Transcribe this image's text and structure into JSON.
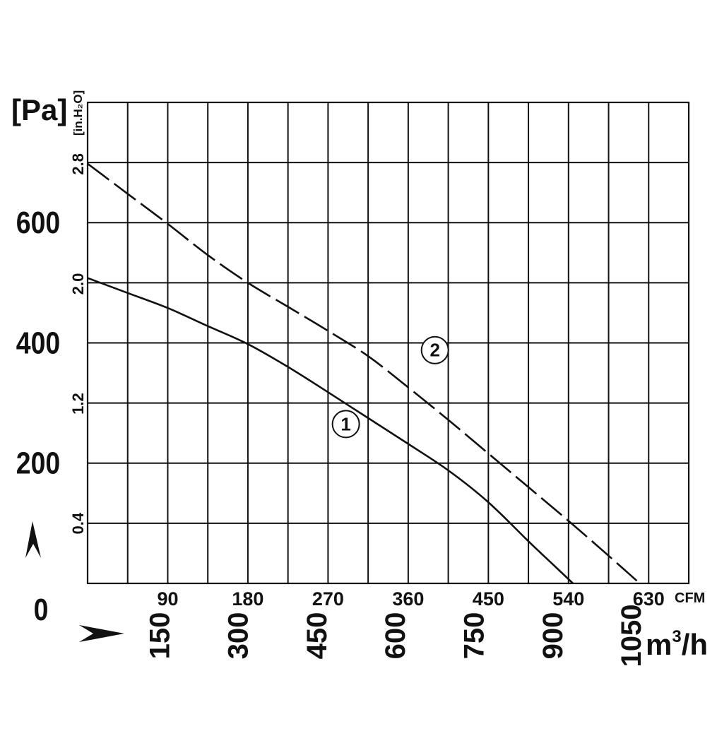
{
  "chart_data": {
    "type": "line",
    "y_unit_primary": "[Pa]",
    "y_unit_secondary": "[in.H₂O]",
    "x_unit_primary": "CFM",
    "x_unit_secondary_base": "m",
    "x_unit_secondary_sup": "3",
    "x_unit_secondary_tail": "/h",
    "pa_ticks": [
      "0",
      "200",
      "400",
      "600"
    ],
    "inh2o_ticks": [
      "0.4",
      "1.2",
      "2.0",
      "2.8"
    ],
    "cfm_ticks": [
      "90",
      "180",
      "270",
      "360",
      "450",
      "540",
      "630"
    ],
    "m3h_ticks": [
      "150",
      "300",
      "450",
      "600",
      "750",
      "900",
      "1050"
    ],
    "xlim_cfm": [
      0,
      675
    ],
    "ylim_pa": [
      0,
      800
    ],
    "grid": true,
    "series": [
      {
        "name": "1",
        "style": "solid",
        "x": [
          0,
          45,
          90,
          135,
          180,
          225,
          270,
          315,
          360,
          405,
          450,
          495,
          520,
          545
        ],
        "y": [
          508,
          483,
          458,
          428,
          398,
          360,
          318,
          275,
          232,
          188,
          135,
          70,
          35,
          0
        ]
      },
      {
        "name": "2",
        "style": "dashed",
        "x": [
          0,
          45,
          90,
          135,
          180,
          225,
          270,
          315,
          360,
          405,
          450,
          495,
          540,
          585,
          620
        ],
        "y": [
          698,
          648,
          598,
          546,
          500,
          460,
          420,
          378,
          326,
          272,
          216,
          160,
          104,
          46,
          0
        ]
      }
    ],
    "labels": [
      "1",
      "2"
    ]
  }
}
